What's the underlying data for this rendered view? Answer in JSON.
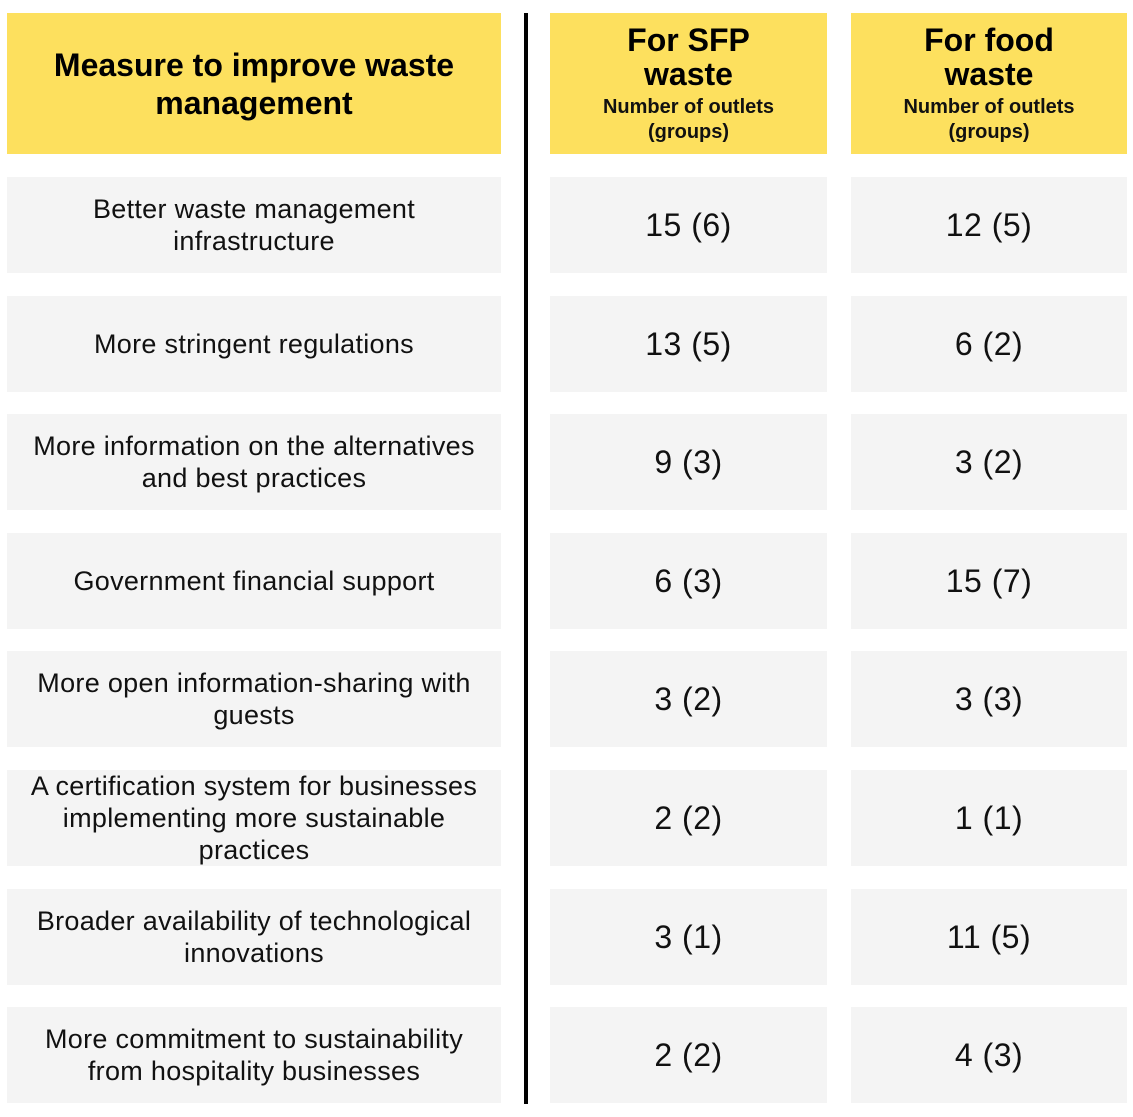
{
  "chart_data": {
    "type": "table",
    "columns": [
      {
        "title": "Measure to improve waste management",
        "subtitle": ""
      },
      {
        "title": "For SFP waste",
        "subtitle": "Number of outlets (groups)"
      },
      {
        "title": "For food waste",
        "subtitle": "Number of outlets (groups)"
      }
    ],
    "rows": [
      {
        "measure": "Better waste management infrastructure",
        "sfp": "15 (6)",
        "food": "12 (5)"
      },
      {
        "measure": "More stringent regulations",
        "sfp": "13 (5)",
        "food": "6 (2)"
      },
      {
        "measure": "More information on the alternatives and best practices",
        "sfp": "9 (3)",
        "food": "3 (2)"
      },
      {
        "measure": "Government financial support",
        "sfp": "6 (3)",
        "food": "15 (7)"
      },
      {
        "measure": "More open information-sharing with guests",
        "sfp": "3 (2)",
        "food": "3 (3)"
      },
      {
        "measure": "A certification system for businesses implementing more sustainable practices",
        "sfp": "2 (2)",
        "food": "1 (1)"
      },
      {
        "measure": "Broader availability of technological innovations",
        "sfp": "3 (1)",
        "food": "11 (5)"
      },
      {
        "measure": "More commitment to sustainability from hospitality businesses",
        "sfp": "2 (2)",
        "food": "4 (3)"
      }
    ],
    "sfp_values": [
      [
        15,
        6
      ],
      [
        13,
        5
      ],
      [
        9,
        3
      ],
      [
        6,
        3
      ],
      [
        3,
        2
      ],
      [
        2,
        2
      ],
      [
        3,
        1
      ],
      [
        2,
        2
      ]
    ],
    "food_values": [
      [
        12,
        5
      ],
      [
        6,
        2
      ],
      [
        3,
        2
      ],
      [
        15,
        7
      ],
      [
        3,
        3
      ],
      [
        1,
        1
      ],
      [
        11,
        5
      ],
      [
        4,
        3
      ]
    ],
    "colors": {
      "header_background": "#fde05e",
      "row_background": "#f4f4f4",
      "divider": "#000000"
    }
  }
}
